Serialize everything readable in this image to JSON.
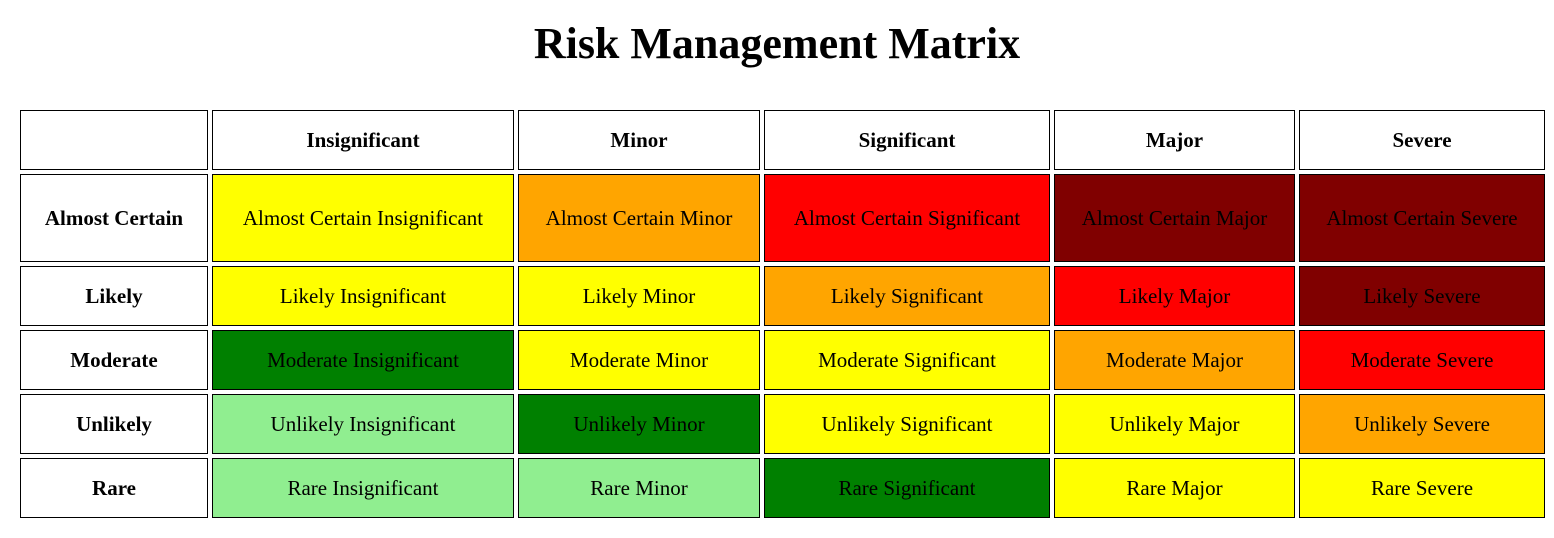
{
  "title": "Risk Management Matrix",
  "chart_data": {
    "type": "table",
    "title": "Risk Management Matrix",
    "columns": [
      "",
      "Insignificant",
      "Minor",
      "Significant",
      "Major",
      "Severe"
    ],
    "rows": [
      {
        "label": "Almost Certain",
        "cells": [
          {
            "text": "Almost Certain Insignificant",
            "color": "#ffff00"
          },
          {
            "text": "Almost Certain Minor",
            "color": "#ffa500"
          },
          {
            "text": "Almost Certain Significant",
            "color": "#ff0000"
          },
          {
            "text": "Almost Certain Major",
            "color": "#800000"
          },
          {
            "text": "Almost Certain Severe",
            "color": "#800000"
          }
        ]
      },
      {
        "label": "Likely",
        "cells": [
          {
            "text": "Likely Insignificant",
            "color": "#ffff00"
          },
          {
            "text": "Likely Minor",
            "color": "#ffff00"
          },
          {
            "text": "Likely Significant",
            "color": "#ffa500"
          },
          {
            "text": "Likely Major",
            "color": "#ff0000"
          },
          {
            "text": "Likely Severe",
            "color": "#800000"
          }
        ]
      },
      {
        "label": "Moderate",
        "cells": [
          {
            "text": "Moderate Insignificant",
            "color": "#008000"
          },
          {
            "text": "Moderate Minor",
            "color": "#ffff00"
          },
          {
            "text": "Moderate Significant",
            "color": "#ffff00"
          },
          {
            "text": "Moderate Major",
            "color": "#ffa500"
          },
          {
            "text": "Moderate Severe",
            "color": "#ff0000"
          }
        ]
      },
      {
        "label": "Unlikely",
        "cells": [
          {
            "text": "Unlikely Insignificant",
            "color": "#90ee90"
          },
          {
            "text": "Unlikely Minor",
            "color": "#008000"
          },
          {
            "text": "Unlikely Significant",
            "color": "#ffff00"
          },
          {
            "text": "Unlikely Major",
            "color": "#ffff00"
          },
          {
            "text": "Unlikely Severe",
            "color": "#ffa500"
          }
        ]
      },
      {
        "label": "Rare",
        "cells": [
          {
            "text": "Rare Insignificant",
            "color": "#90ee90"
          },
          {
            "text": "Rare Minor",
            "color": "#90ee90"
          },
          {
            "text": "Rare Significant",
            "color": "#008000"
          },
          {
            "text": "Rare Major",
            "color": "#ffff00"
          },
          {
            "text": "Rare Severe",
            "color": "#ffff00"
          }
        ]
      }
    ]
  }
}
